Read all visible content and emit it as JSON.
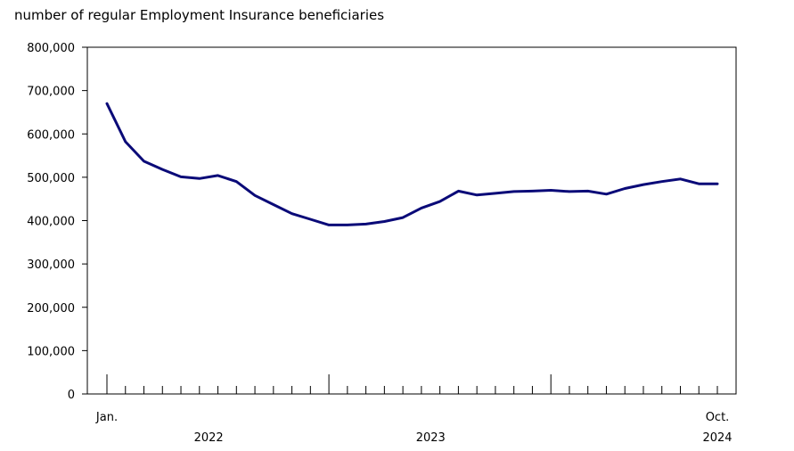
{
  "chart_data": {
    "type": "line",
    "title": "",
    "ylabel": "number of regular Employment Insurance beneficiaries",
    "xlabel": "",
    "ylim": [
      0,
      800000
    ],
    "yticks": [
      0,
      100000,
      200000,
      300000,
      400000,
      500000,
      600000,
      700000,
      800000
    ],
    "ytick_labels": [
      "0",
      "100,000",
      "200,000",
      "300,000",
      "400,000",
      "500,000",
      "600,000",
      "700,000",
      "800,000"
    ],
    "x_start_label": "Jan.",
    "x_end_label": "Oct.",
    "year_labels": [
      "2022",
      "2023",
      "2024"
    ],
    "months_count": 34,
    "grid": false,
    "series": [
      {
        "values": [
          670000,
          582000,
          537000,
          518000,
          501000,
          497000,
          504000,
          490000,
          458000,
          437000,
          416000,
          403000,
          390000,
          390000,
          392000,
          398000,
          407000,
          429000,
          444000,
          468000,
          459000,
          463000,
          467000,
          468000,
          470000,
          467000,
          468000,
          461000,
          474000,
          483000,
          490000,
          496000,
          485000,
          485000
        ]
      }
    ]
  }
}
